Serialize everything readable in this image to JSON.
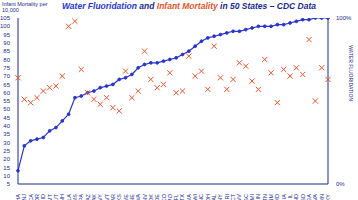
{
  "chart_data": {
    "type": "line",
    "title": "Water Fluoridation and Infant Mortality in 50 States – CDC Data",
    "y_label": "Infant Mortality per 10,000",
    "y2_label": "WATER FLUORIDATION",
    "categories": [
      "HA",
      "NJ",
      "CA",
      "OR",
      "ID",
      "MT",
      "UT",
      "NH",
      "LA",
      "MS",
      "PA",
      "AZ",
      "AK",
      "WY",
      "VT",
      "AR",
      "KS",
      "ME",
      "NE",
      "WA",
      "NV",
      "OK",
      "DE",
      "CO",
      "MO",
      "FL",
      "TX",
      "MA",
      "WI",
      "NC",
      "OH",
      "AL",
      "NY",
      "RI",
      "CT",
      "WV",
      "SC",
      "MI",
      "IN",
      "TN",
      "NM",
      "MD",
      "IA",
      "IL",
      "ND",
      "SD",
      "GA",
      "VA",
      "MN",
      "KY"
    ],
    "series": [
      {
        "name": "Water Fluoridation",
        "type": "line",
        "marker": "circle",
        "color": "#2a36c8",
        "axis": "y2",
        "values": [
          8,
          23,
          26,
          27,
          28,
          32,
          34,
          38,
          42,
          52,
          53,
          55,
          56,
          58,
          59,
          60,
          63,
          64,
          66,
          70,
          72,
          73,
          73,
          74,
          75,
          76,
          78,
          80,
          83,
          86,
          88,
          89,
          90,
          91,
          92,
          92,
          93,
          94,
          95,
          95,
          95,
          96,
          96,
          97,
          98,
          99,
          99,
          100,
          100,
          100
        ]
      },
      {
        "name": "Infant Mortality",
        "type": "scatter",
        "marker": "x",
        "color": "#e0552e",
        "values": [
          69,
          56,
          54,
          57,
          61,
          63,
          64,
          70,
          100,
          103,
          74,
          60,
          56,
          53,
          57,
          51,
          49,
          73,
          57,
          61,
          85,
          68,
          63,
          65,
          72,
          60,
          61,
          82,
          70,
          73,
          62,
          88,
          69,
          62,
          68,
          78,
          76,
          67,
          62,
          80,
          72,
          54,
          74,
          70,
          75,
          71,
          92,
          55,
          75,
          68
        ]
      }
    ],
    "ylim": [
      5,
      105
    ],
    "yticks": [
      5,
      10,
      15,
      20,
      25,
      30,
      35,
      40,
      45,
      50,
      55,
      60,
      65,
      70,
      75,
      80,
      85,
      90,
      95,
      100,
      105
    ],
    "y2lim": [
      0,
      100
    ],
    "y2ticks": [
      {
        "value": 0,
        "label": "0%"
      },
      {
        "value": 100,
        "label": "100%"
      }
    ],
    "grid": false
  }
}
